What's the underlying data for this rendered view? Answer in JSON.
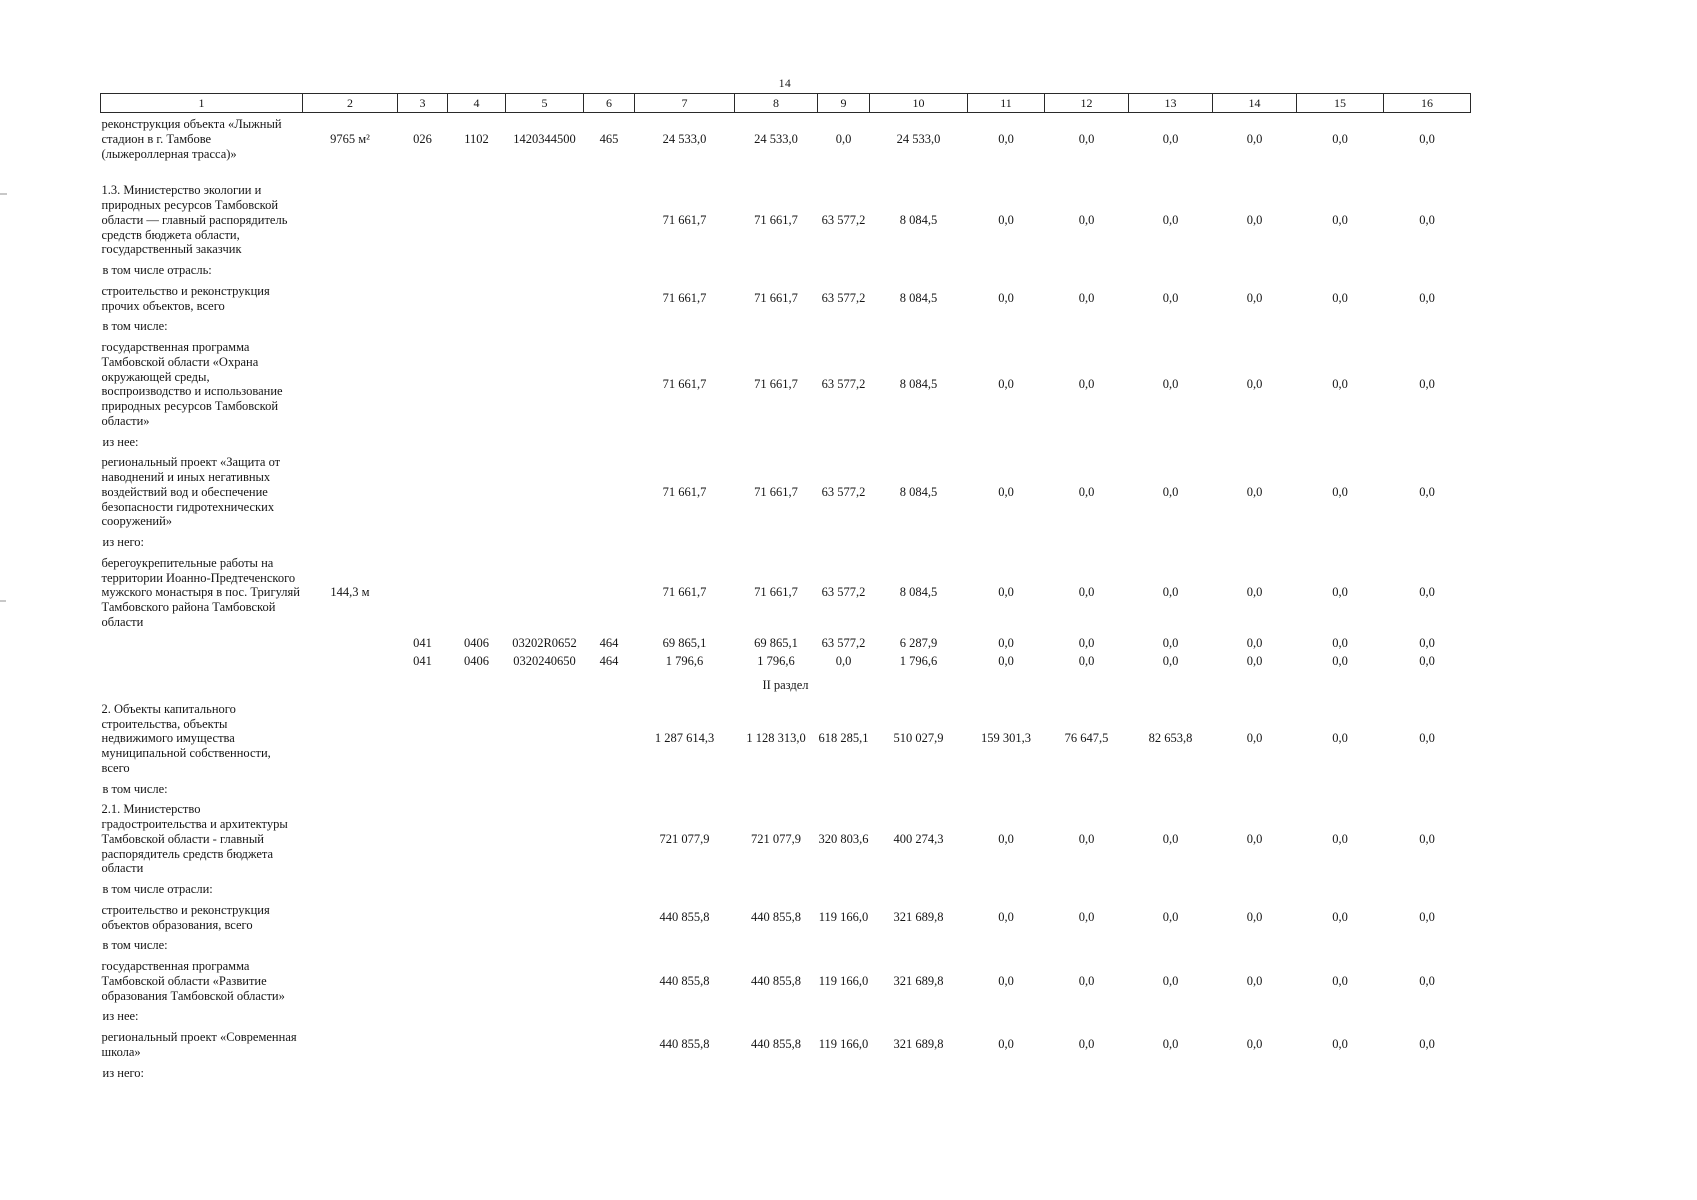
{
  "page": {
    "number": "14"
  },
  "table": {
    "header": [
      "1",
      "2",
      "3",
      "4",
      "5",
      "6",
      "7",
      "8",
      "9",
      "10",
      "11",
      "12",
      "13",
      "14",
      "15",
      "16"
    ],
    "rows": [
      {
        "type": "data",
        "name": "реконструкция объекта «Лыжный стадион в г. Тамбове (лыжероллерная трасса)»",
        "qty": "9765 м²",
        "codes": [
          "026",
          "1102",
          "1420344500",
          "465"
        ],
        "values": [
          "24 533,0",
          "24 533,0",
          "0,0",
          "24 533,0",
          "0,0",
          "0,0",
          "0,0",
          "0,0",
          "0,0",
          "0,0"
        ]
      },
      {
        "type": "data",
        "cls": "gap-top",
        "name": "1.3. Министерство экологии и природных ресурсов Тамбовской области — главный распорядитель средств бюджета области, государственный заказчик",
        "qty": "",
        "codes": [
          "",
          "",
          "",
          ""
        ],
        "values": [
          "71 661,7",
          "71 661,7",
          "63 577,2",
          "8 084,5",
          "0,0",
          "0,0",
          "0,0",
          "0,0",
          "0,0",
          "0,0"
        ]
      },
      {
        "type": "label",
        "name": "в том числе отрасль:"
      },
      {
        "type": "data",
        "name": "строительство и реконструкция прочих объектов, всего",
        "qty": "",
        "codes": [
          "",
          "",
          "",
          ""
        ],
        "values": [
          "71 661,7",
          "71 661,7",
          "63 577,2",
          "8 084,5",
          "0,0",
          "0,0",
          "0,0",
          "0,0",
          "0,0",
          "0,0"
        ]
      },
      {
        "type": "label",
        "name": "в том числе:"
      },
      {
        "type": "data",
        "name": "государственная программа Тамбовской области «Охрана окружающей среды, воспроизводство и использование природных ресурсов Тамбовской области»",
        "qty": "",
        "codes": [
          "",
          "",
          "",
          ""
        ],
        "values": [
          "71 661,7",
          "71 661,7",
          "63 577,2",
          "8 084,5",
          "0,0",
          "0,0",
          "0,0",
          "0,0",
          "0,0",
          "0,0"
        ]
      },
      {
        "type": "label",
        "name": "из нее:"
      },
      {
        "type": "data",
        "name": "региональный проект «Защита от наводнений и иных негативных воздействий вод и обеспечение безопасности гидротехнических сооружений»",
        "qty": "",
        "codes": [
          "",
          "",
          "",
          ""
        ],
        "values": [
          "71 661,7",
          "71 661,7",
          "63 577,2",
          "8 084,5",
          "0,0",
          "0,0",
          "0,0",
          "0,0",
          "0,0",
          "0,0"
        ]
      },
      {
        "type": "label",
        "name": "из него:"
      },
      {
        "type": "data",
        "name": "берегоукрепительные работы на территории Иоанно-Предтеченского мужского монастыря в пос. Тригуляй Тамбовского района Тамбовской области",
        "qty": "144,3 м",
        "codes": [
          "",
          "",
          "",
          ""
        ],
        "values": [
          "71 661,7",
          "71 661,7",
          "63 577,2",
          "8 084,5",
          "0,0",
          "0,0",
          "0,0",
          "0,0",
          "0,0",
          "0,0"
        ]
      },
      {
        "type": "data",
        "cls": "codes",
        "name": "",
        "qty": "",
        "codes": [
          "041",
          "0406",
          "03202R0652",
          "464"
        ],
        "values": [
          "69 865,1",
          "69 865,1",
          "63 577,2",
          "6 287,9",
          "0,0",
          "0,0",
          "0,0",
          "0,0",
          "0,0",
          "0,0"
        ]
      },
      {
        "type": "data",
        "cls": "codes",
        "name": "",
        "qty": "",
        "codes": [
          "041",
          "0406",
          "0320240650",
          "464"
        ],
        "values": [
          "1 796,6",
          "1 796,6",
          "0,0",
          "1 796,6",
          "0,0",
          "0,0",
          "0,0",
          "0,0",
          "0,0",
          "0,0"
        ]
      },
      {
        "type": "section",
        "name": "II раздел"
      },
      {
        "type": "data",
        "name": "2. Объекты капитального строительства, объекты недвижимого имущества муниципальной собственности, всего",
        "qty": "",
        "codes": [
          "",
          "",
          "",
          ""
        ],
        "values": [
          "1 287 614,3",
          "1 128 313,0",
          "618 285,1",
          "510 027,9",
          "159 301,3",
          "76 647,5",
          "82 653,8",
          "0,0",
          "0,0",
          "0,0"
        ]
      },
      {
        "type": "label",
        "name": "в том числе:"
      },
      {
        "type": "data",
        "name": "2.1. Министерство градостроительства и архитектуры Тамбовской области - главный распорядитель средств бюджета области",
        "qty": "",
        "codes": [
          "",
          "",
          "",
          ""
        ],
        "values": [
          "721 077,9",
          "721 077,9",
          "320 803,6",
          "400 274,3",
          "0,0",
          "0,0",
          "0,0",
          "0,0",
          "0,0",
          "0,0"
        ]
      },
      {
        "type": "label",
        "name": "в том числе отрасли:"
      },
      {
        "type": "data",
        "name": "строительство и реконструкция объектов образования, всего",
        "qty": "",
        "codes": [
          "",
          "",
          "",
          ""
        ],
        "values": [
          "440 855,8",
          "440 855,8",
          "119 166,0",
          "321 689,8",
          "0,0",
          "0,0",
          "0,0",
          "0,0",
          "0,0",
          "0,0"
        ]
      },
      {
        "type": "label",
        "name": "в том числе:"
      },
      {
        "type": "data",
        "name": "государственная программа Тамбовской области «Развитие образования Тамбовской области»",
        "qty": "",
        "codes": [
          "",
          "",
          "",
          ""
        ],
        "values": [
          "440 855,8",
          "440 855,8",
          "119 166,0",
          "321 689,8",
          "0,0",
          "0,0",
          "0,0",
          "0,0",
          "0,0",
          "0,0"
        ]
      },
      {
        "type": "label",
        "name": "из нее:"
      },
      {
        "type": "data",
        "name": "региональный проект «Современная школа»",
        "qty": "",
        "codes": [
          "",
          "",
          "",
          ""
        ],
        "values": [
          "440 855,8",
          "440 855,8",
          "119 166,0",
          "321 689,8",
          "0,0",
          "0,0",
          "0,0",
          "0,0",
          "0,0",
          "0,0"
        ]
      },
      {
        "type": "label",
        "name": "из него:"
      }
    ]
  }
}
